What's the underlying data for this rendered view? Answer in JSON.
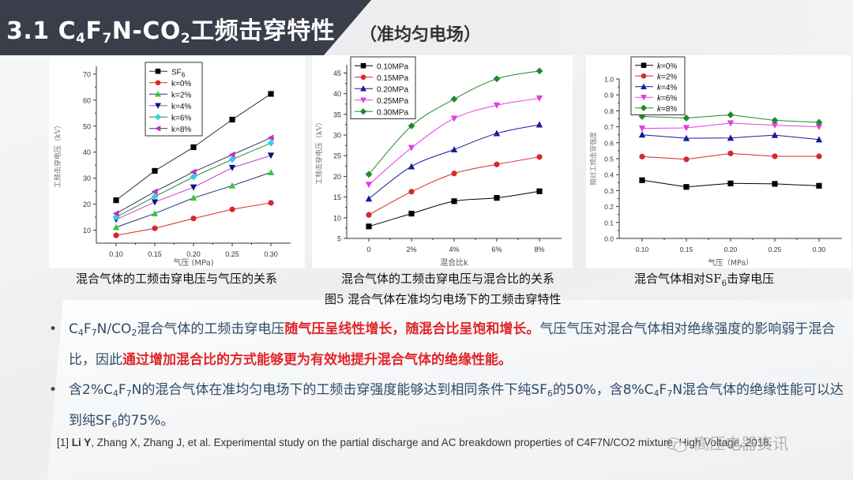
{
  "header": {
    "title_prefix": "3.1  C",
    "title_sub1": "4",
    "title_mid1": "F",
    "title_sub2": "7",
    "title_mid2": "N-CO",
    "title_sub3": "2",
    "title_suffix": "工频击穿特性",
    "subtitle": "（准均匀电场）"
  },
  "captions": {
    "chart1": "混合气体的工频击穿电压与气压的关系",
    "chart2": "混合气体的工频击穿电压与混合比的关系",
    "chart3_prefix": "混合气体相对SF",
    "chart3_sub": "6",
    "chart3_suffix": "击穿电压",
    "figure": "图5 混合气体在准均匀电场下的工频击穿特性"
  },
  "bullets": [
    {
      "p1": "C",
      "s1": "4",
      "p2": "F",
      "s2": "7",
      "p3": "N/CO",
      "s3": "2",
      "p4": "混合气体的工频击穿电压",
      "r1": "随气压呈线性增长，随混合比呈饱和增长。",
      "p5": "气压气压对混合气体相对绝缘强度的影响弱于混合比，因此",
      "r2": "通过增加混合比的方式能够更为有效地提升混合气体的绝缘性能。"
    },
    {
      "p1": "含2%C",
      "s1": "4",
      "p2": "F",
      "s2": "7",
      "p3": "N的混合气体在准均匀电场下的工频击穿强度能够达到相同条件下纯SF",
      "s3": "6",
      "p4": "的50%，含8%C",
      "s4": "4",
      "p5": "F",
      "s5": "7",
      "p6": "N混合气体的绝缘性能可以达到纯SF",
      "s6": "6",
      "p7": "的75%。"
    }
  ],
  "reference": {
    "num": "[1] ",
    "author": "Li Y",
    "rest": ", Zhang X, Zhang J, et al. Experimental study on the partial discharge and AC breakdown properties of C4F7N/CO2 mixture, High Voltage, 2018."
  },
  "watermark": "高压电器资讯",
  "colors": {
    "header_dark": "#3a3d4a",
    "body_text": "#2f4b66",
    "highlight_red": "#e0262a"
  },
  "chart_data": [
    {
      "type": "line",
      "title": "混合气体的工频击穿电压与气压的关系",
      "xlabel": "气压 (MPa)",
      "ylabel": "工频击穿电压（kV）",
      "x": [
        0.1,
        0.15,
        0.2,
        0.25,
        0.3
      ],
      "xticks": [
        "0.10",
        "0.15",
        "0.20",
        "0.25",
        "0.30"
      ],
      "yticks": [
        10,
        20,
        30,
        40,
        50,
        60,
        70
      ],
      "ylim": [
        5,
        73
      ],
      "legend_position": "top-left",
      "grid": false,
      "series": [
        {
          "name": "SF6",
          "marker": "square",
          "color": "#000000",
          "line": "#333333",
          "values": [
            21.5,
            32.8,
            41.9,
            52.5,
            62.4
          ]
        },
        {
          "name": "k=0%",
          "marker": "circle",
          "color": "#d42a2a",
          "line": "#d42a2a",
          "values": [
            8.0,
            10.7,
            14.5,
            18.0,
            20.5
          ]
        },
        {
          "name": "k=2%",
          "marker": "triangle-up",
          "color": "#3cc43c",
          "line": "#2a2a80",
          "values": [
            11.1,
            16.4,
            22.4,
            27.1,
            32.2
          ]
        },
        {
          "name": "k=4%",
          "marker": "triangle-down",
          "color": "#101080",
          "line": "#c040c0",
          "values": [
            14.1,
            20.8,
            26.5,
            34.0,
            38.7
          ]
        },
        {
          "name": "k=6%",
          "marker": "diamond",
          "color": "#30d0e8",
          "line": "#2a8a2a",
          "values": [
            15.0,
            22.9,
            30.5,
            37.2,
            43.5
          ]
        },
        {
          "name": "k=8%",
          "marker": "triangle-left",
          "color": "#c030c0",
          "line": "#333366",
          "values": [
            16.4,
            24.8,
            32.4,
            39.0,
            45.5
          ]
        }
      ]
    },
    {
      "type": "line",
      "title": "混合气体的工频击穿电压与混合比的关系",
      "xlabel": "混合比k",
      "ylabel": "工频击穿电压（kV）",
      "categories": [
        "0",
        "2%",
        "4%",
        "6%",
        "8%"
      ],
      "yticks": [
        5,
        10,
        15,
        20,
        25,
        30,
        35,
        40,
        45
      ],
      "ylim": [
        5,
        47
      ],
      "legend_position": "top-left",
      "grid": false,
      "series": [
        {
          "name": "0.10MPa",
          "marker": "square",
          "color": "#000000",
          "values": [
            7.9,
            11.0,
            14.0,
            14.8,
            16.4
          ]
        },
        {
          "name": "0.15MPa",
          "marker": "circle",
          "color": "#d42a2a",
          "values": [
            10.7,
            16.3,
            20.7,
            22.9,
            24.7
          ]
        },
        {
          "name": "0.20MPa",
          "marker": "triangle-up",
          "color": "#1a1a9a",
          "values": [
            14.6,
            22.4,
            26.5,
            30.4,
            32.5
          ]
        },
        {
          "name": "0.25MPa",
          "marker": "triangle-down",
          "color": "#e040e0",
          "values": [
            18.0,
            26.9,
            34.0,
            37.2,
            38.9
          ]
        },
        {
          "name": "0.30MPa",
          "marker": "diamond",
          "color": "#1f8a2a",
          "values": [
            20.5,
            32.2,
            38.7,
            43.6,
            45.5
          ]
        }
      ]
    },
    {
      "type": "line",
      "title": "混合气体相对SF6击穿电压",
      "xlabel": "气压（MPa）",
      "ylabel": "相对工频击穿强度",
      "x": [
        0.1,
        0.15,
        0.2,
        0.25,
        0.3
      ],
      "xticks": [
        "0.10",
        "0.15",
        "0.20",
        "0.25",
        "0.30"
      ],
      "yticks": [
        "0.0",
        "0.1",
        "0.2",
        "0.3",
        "0.4",
        "0.5",
        "0.6",
        "0.7",
        "0.8",
        "0.9",
        "1.0"
      ],
      "ylim": [
        0,
        1.0
      ],
      "legend_position": "top-left",
      "grid": false,
      "series": [
        {
          "name": "k=0%",
          "marker": "square",
          "color": "#000000",
          "values": [
            0.365,
            0.323,
            0.345,
            0.342,
            0.33
          ]
        },
        {
          "name": "k=2%",
          "marker": "circle",
          "color": "#d42a2a",
          "values": [
            0.513,
            0.496,
            0.533,
            0.515,
            0.515
          ]
        },
        {
          "name": "k=4%",
          "marker": "triangle-up",
          "color": "#1a1a9a",
          "values": [
            0.65,
            0.628,
            0.63,
            0.648,
            0.62
          ]
        },
        {
          "name": "k=6%",
          "marker": "triangle-down",
          "color": "#e040e0",
          "values": [
            0.69,
            0.693,
            0.723,
            0.71,
            0.7
          ]
        },
        {
          "name": "k=8%",
          "marker": "diamond",
          "color": "#1f8a2a",
          "values": [
            0.765,
            0.755,
            0.775,
            0.74,
            0.728
          ]
        }
      ]
    }
  ]
}
